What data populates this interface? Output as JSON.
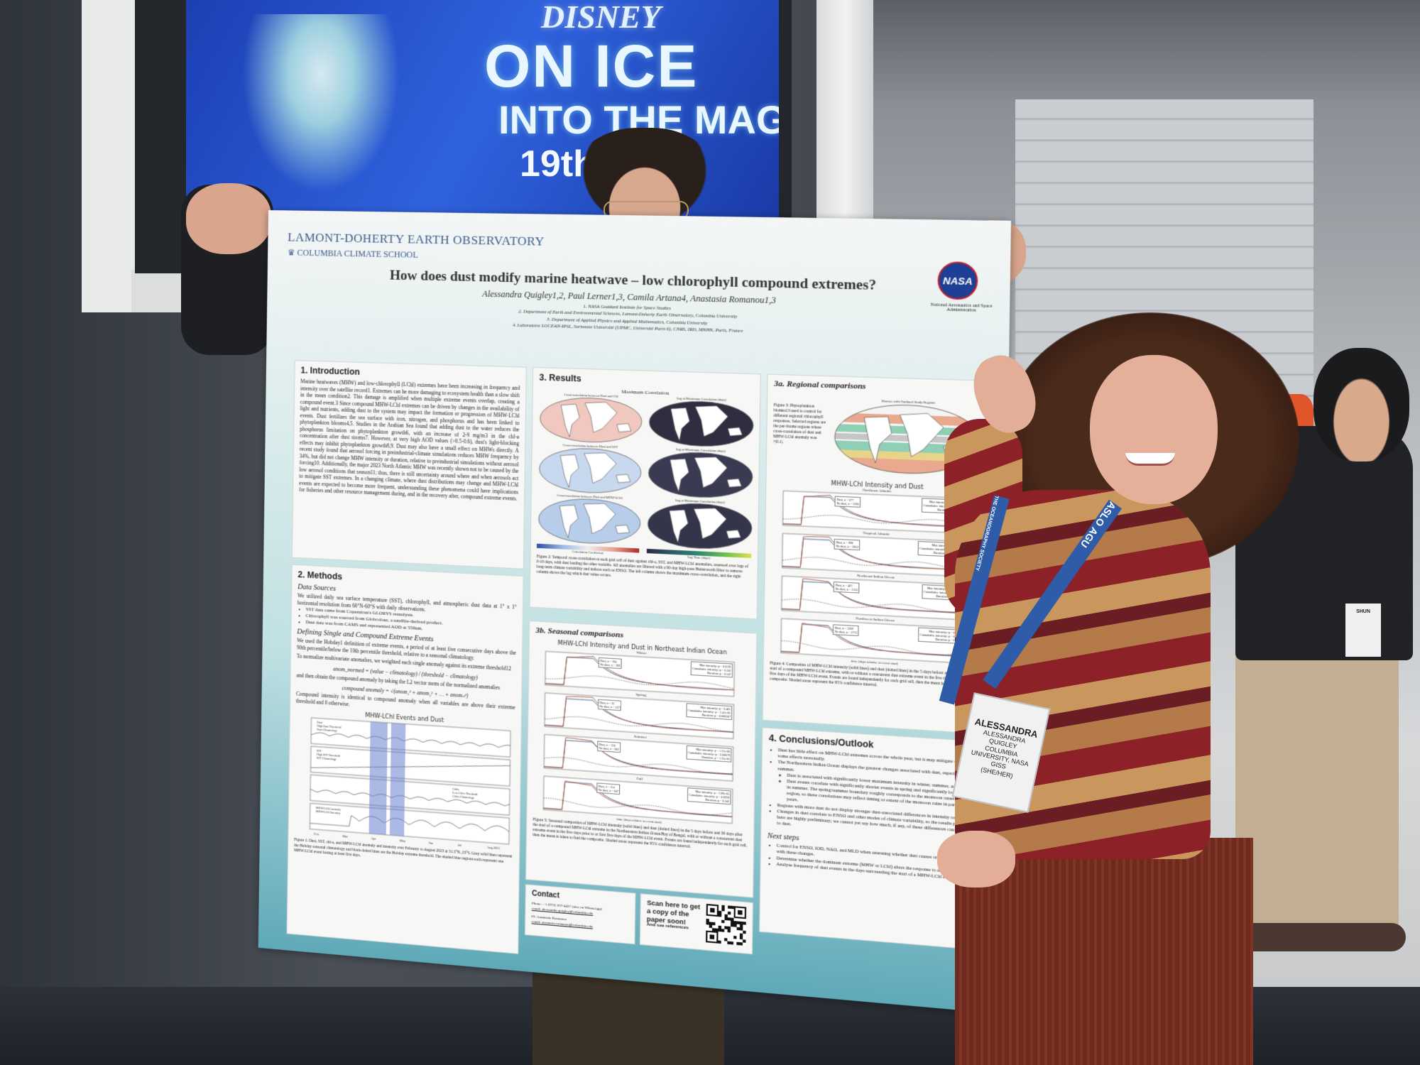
{
  "banner": {
    "brand": "DISNEY",
    "line1": "ON ICE",
    "line2": "INTO THE MAGIC",
    "line3": "19th"
  },
  "poster": {
    "institution": "LAMONT-DOHERTY EARTH OBSERVATORY",
    "school": "COLUMBIA CLIMATE SCHOOL",
    "title": "How does dust modify marine heatwave – low chlorophyll compound extremes?",
    "authors": "Alessandra Quigley1,2, Paul Lerner1,3, Camila Artana4, Anastasia Romanou1,3",
    "affiliations": [
      "1. NASA Goddard Institute for Space Studies",
      "2. Department of Earth and Environmental Sciences, Lamont-Doherty Earth Observatory, Columbia University",
      "3. Department of Applied Physics and Applied Mathematics, Columbia University",
      "4. Laboratoire LOCEAN-IPSL, Sorbonne Université (UPMC, Université Paris 6), CNRS, IRD, MNHN, Paris, France"
    ],
    "nasa_logo": "NASA",
    "nasa_name": "National Aeronautics and Space Administration",
    "intro": {
      "heading": "1. Introduction",
      "body": "Marine heatwaves (MHW) and low-chlorophyll (LChl) extremes have been increasing in frequency and intensity over the satellite record1. Extremes can be more damaging to ecosystem health than a slow shift in the mean condition2. This damage is amplified when multiple extreme events overlap, creating a compound event.3 Since compound MHW-LChl extremes can be driven by changes in the availability of light and nutrients, adding dust to the system may impact the formation or progression of MHW-LChl events. Dust fertilizes the sea surface with iron, nitrogen, and phosphorus and has been linked to phytoplankton blooms4,5. Studies in the Arabian Sea found that adding dust to the water reduces the phosphorus limitation on phytoplankton growth6, with an increase of 2-9 mg/m3 in the chl-a concentration after dust storms7. However, at very high AOD values (>0.5-0.6), dust's light-blocking effects may inhibit phytoplankton growth8,9. Dust may also have a small effect on MHWs directly. A recent study found that aerosol forcing in preindustrial-climate simulations reduces MHW frequency by 34%, but did not change MHW intensity or duration, relative to preindustrial simulations without aerosol forcing10. Additionally, the major 2023 North Atlantic MHW was recently shown not to be caused by the low aerosol conditions that season11; thus, there is still uncertainty around where and when aerosols act to mitigate SST extremes. In a changing climate, where dust distributions may change and MHW-LChl events are expected to become more frequent, understanding these phenomena could have implications for fisheries and other resource management during, and in the recovery after, compound extreme events."
    },
    "methods": {
      "heading": "2. Methods",
      "sub1": "Data Sources",
      "p1": "We utilized daily sea surface temperature (SST), chlorophyll, and atmospheric dust data at 1° x 1° horizontal resolution from 60°N-60°S with daily observations.",
      "bullets": [
        "SST data came from Copernicus's GLORYS reanalysis.",
        "Chlorophyll was sourced from Globcolour, a satellite-derived product.",
        "Dust data was from CAMS and represented AOD at 550nm."
      ],
      "sub2": "Defining Single and Compound Extreme Events",
      "p2": "We used the Hobday1 definition of extreme events, a period of at least five consecutive days above the 90th percentile/below the 10th percentile threshold, relative to a seasonal climatology.",
      "p3": "To normalize multivariate anomalies, we weighted each single anomaly against its extreme threshold12",
      "eq1": "anom_normed = (value − climatology) / (threshold − climatology)",
      "p4": "and then obtain the compound anomaly by taking the L2 vector norm of the normalized anomalies",
      "eq2": "compound anomaly = √(anom₁² + anom₂² + … + anomₙ²)",
      "p5": "Compound intensity is identical to compound anomaly when all variables are above their extreme threshold and 0 otherwise.",
      "fig1_title": "MHW-LChl Events and Dust",
      "fig1_legends": [
        [
          "Dust",
          "High Dust Threshold",
          "Dust Climatology"
        ],
        [
          "SST",
          "High SST Threshold",
          "SST Climatology"
        ],
        [
          "Chl-a",
          "Low Chl-a Threshold",
          "Chl-a Climatology"
        ],
        [
          "MHW-LChl Anomaly",
          "MHW-LChl Intensity"
        ]
      ],
      "fig1_months": [
        "Feb",
        "Mar",
        "Apr",
        "May",
        "Jun",
        "Jul",
        "Aug 2023"
      ],
      "fig1_caption": "Figure 1: Dust, SST, chl-a, and MHW-LChl anomaly and intensity over February to August 2023 at 31.5°N, 23°S. Grey solid lines represent the Hobday seasonal climatology and black dotted lines are the Hobday extreme threshold. The shaded blue regions each represent one MHW-LChl event lasting at least five days."
    },
    "results": {
      "heading": "3. Results",
      "fig2_title": "Maximum Correlation",
      "map_titles": [
        "Cross-correlation between Dust and Chl",
        "Lag at Maximum Correlation (days)",
        "Cross-correlation between Dust and SST",
        "Lag at Maximum Correlation (days)",
        "Cross-correlation between Dust and MHW-LChl",
        "Lag at Maximum Correlation (days)"
      ],
      "cbar1": "Correlation Coefficient",
      "cbar2": "Lag Time (days)",
      "fig2_caption": "Figure 2: Temporal cross-correlation at each grid cell of dust against chl-a, SST, and MHW-LChl anomalies, assessed over lags of 0-10 days, with dust leading the other variable. All anomalies are filtered with a 90-day high-pass Butterworth filter to remove long-term climate variability and indices such as ENSO. The left column shows the maximum cross-correlation, and the right column shows the lag which that value occurs."
    },
    "seasonal": {
      "heading": "3b. Seasonal comparisons",
      "fig_title": "MHW-LChl Intensity and Dust in Northeast Indian Ocean",
      "panels": [
        {
          "name": "Winter",
          "dust": "Dust, n = 194",
          "nodust": "No dust, n = 369",
          "stats": [
            "Max intensity: p = 0.0195",
            "Cumulative intensity: p = 0.241",
            "Duration: p = 0.547"
          ]
        },
        {
          "name": "Spring",
          "dust": "Dust, n = 35",
          "nodust": "No dust, n = 537",
          "stats": [
            "Max intensity: p = 0.405",
            "Cumulative intensity: p = 2.41e-05",
            "Duration: p = 0.000507"
          ]
        },
        {
          "name": "Summer",
          "dust": "Dust, n = 124",
          "nodust": "No dust, n = 602",
          "stats": [
            "Max intensity: p = 1.31e-06",
            "Cumulative intensity: p = 0.00679",
            "Duration: p = 1.35e-05"
          ]
        },
        {
          "name": "Fall",
          "dust": "Dust, n = 114",
          "nodust": "No dust, n = 647",
          "stats": [
            "Max intensity: p = 2.89e-05",
            "Cumulative intensity: p = 0.0959",
            "Duration: p = 0.342"
          ]
        }
      ],
      "xlabel": "time (days relative to event start)",
      "caption": "Figure 5: Seasonal composites of MHW-LChl intensity (solid lines) and dust (dotted lines) in the 5 days before and 30 days after the start of a compound MHW-LChl extreme in the Northeastern Indian Ocean/Bay of Bengal, with or without a concurrent dust extreme event in the five days prior to or first five days of the MHW-LChl event. Events are found independently for each grid cell, then the mean is taken to find the composite. Shaded areas represent the 95% confidence interval."
    },
    "contact": {
      "heading": "Contact",
      "phone": "Phone: +1 (973) 307-4437 (also on WhatsApp)",
      "email1": "email: alessandra.quigley@columbia.edu",
      "pi": "PI: Anastasia Romanou",
      "email2": "email: anastasia.romanou@columbia.edu"
    },
    "qr": {
      "line1": "Scan here to get a copy of the paper soon!",
      "line2": "And see references"
    },
    "regional": {
      "heading": "3a. Regional comparisons",
      "fig3_caption": "Figure 3: Phytoplankton biomes13 used to control for different regional chlorophyll responses. Selected regions are the per-biome regions where cross-correlation of dust and MHW-LChl anomaly was >|0.1|.",
      "map_title": "Biomes with Outlined Study Regions",
      "fig4_title": "MHW-LChl Intensity and Dust",
      "panels": [
        {
          "name": "Northeast Atlantic",
          "dust": "Dust, n = 677",
          "nodust": "No dust, n = 2392",
          "stats": [
            "Max intensity: p = 0.00692",
            "Cumulative intensity: p = 0.374",
            "Duration: p = 0.0619"
          ]
        },
        {
          "name": "Tropical Atlantic",
          "dust": "Dust, n = 998",
          "nodust": "No dust, n = 2852",
          "stats": [
            "Max intensity: p = 0.761",
            "Cumulative intensity: p = 0.00132",
            "Duration: p = 0.000382"
          ]
        },
        {
          "name": "Northeast Indian Ocean",
          "dust": "Dust, n = 467",
          "nodust": "No dust, n = 2155",
          "stats": [
            "Max intensity: p = 1.15e-07",
            "Cumulative intensity: p = 0.99",
            "Duration: p = 0.0966"
          ]
        },
        {
          "name": "Northwest Indian Ocean",
          "dust": "Dust, n = 1269",
          "nodust": "No dust, n = 3772",
          "stats": [
            "Max intensity: p = 0.0127",
            "Cumulative intensity: p = 0.0118",
            "Duration: p = 0.0252"
          ]
        }
      ],
      "xlabel": "time (days relative to event start)",
      "fig4_caption": "Figure 4: Composites of MHW-LChl intensity (solid lines) and dust (dotted lines) in the 5 days before and 30 days after the start of a compound MHW-LChl extreme, with or without a concurrent dust extreme event in the five days prior to or first five days of the MHW-LChl event. Events are found independently for each grid cell, then the mean is taken to find the composite. Shaded areas represent the 95% confidence interval."
    },
    "conclusions": {
      "heading": "4. Conclusions/Outlook",
      "b1": "Dust has little effect on MHW-LChl extremes across the whole year, but it may mitigate or amplify some effects seasonally.",
      "b2": "The Northeastern Indian Ocean displays the greatest changes associated with dust, especially in the summer.",
      "b2a": "Dust is associated with significantly lower maximum intensity in winter, summer, and fall.",
      "b2b": "Dust events correlate with significantly shorter events in spring and significantly longer events in summer. The spring/summer boundary roughly corresponds to the monsoon onset in this region, so these correlations may reflect timing or extent of the monsoon rains in particular years.",
      "b3": "Regions with more dust do not display stronger dust-associated differences in intensity or duration.",
      "b4": "Changes in dust correlate to ENSO and other modes of climate variability, so the results presented here are highly preliminary; we cannot yet say how much, if any, of these differences can be ascribed to dust.",
      "next": "Next steps",
      "n1": "Control for ENSO, IOD, NAO, and MLD when assessing whether dust causes or merely correlates with these changes.",
      "n2": "Determine whether the dominant extreme (MHW or LChl) alters the response to dust (if any).",
      "n3": "Analyse frequency of dust events in the days surrounding the start of a MHW-LChl event."
    }
  },
  "lanyard": {
    "text1": "THE OCEANOGRAPHY SOCIETY",
    "text2": "ASLO",
    "text3": "AGU"
  },
  "badge": {
    "first": "ALESSANDRA",
    "full": "ALESSANDRA QUIGLEY",
    "org": "COLUMBIA UNIVERSITY, NASA GISS",
    "pronouns": "(SHE/HER)"
  },
  "badge2": {
    "first": "SHUN"
  },
  "colors": {
    "poster_teal": "#5fa9b8",
    "banner_blue": "#2f62de",
    "lanyard_blue": "#2e5ca8",
    "sweater_red": "#8c2228"
  }
}
